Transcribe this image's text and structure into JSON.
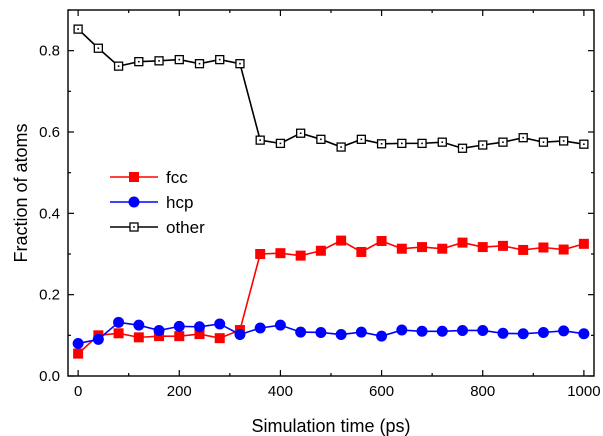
{
  "chart_data": {
    "type": "line",
    "xlabel": "Simulation time (ps)",
    "ylabel": "Fraction of atoms",
    "xlim": [
      -20,
      1020
    ],
    "ylim": [
      0.0,
      0.9
    ],
    "xticks": [
      0,
      200,
      400,
      600,
      800,
      1000
    ],
    "yticks": [
      0.0,
      0.2,
      0.4,
      0.6,
      0.8
    ],
    "xtick_labels": [
      "0",
      "200",
      "400",
      "600",
      "800",
      "1000"
    ],
    "ytick_labels": [
      "0.0",
      "0.2",
      "0.4",
      "0.6",
      "0.8"
    ],
    "grid": false,
    "legend_position": "center-left",
    "x": [
      0,
      40,
      80,
      120,
      160,
      200,
      240,
      280,
      320,
      360,
      400,
      440,
      480,
      520,
      560,
      600,
      640,
      680,
      720,
      760,
      800,
      840,
      880,
      920,
      960,
      1000
    ],
    "series": [
      {
        "name": "fcc",
        "color": "#ff0000",
        "marker": "filled-square",
        "values": [
          0.055,
          0.1,
          0.105,
          0.095,
          0.098,
          0.098,
          0.103,
          0.093,
          0.113,
          0.3,
          0.302,
          0.296,
          0.308,
          0.333,
          0.305,
          0.332,
          0.313,
          0.317,
          0.313,
          0.328,
          0.317,
          0.32,
          0.31,
          0.316,
          0.311,
          0.325
        ]
      },
      {
        "name": "hcp",
        "color": "#0000ff",
        "marker": "filled-circle",
        "values": [
          0.08,
          0.09,
          0.132,
          0.125,
          0.112,
          0.122,
          0.121,
          0.128,
          0.102,
          0.118,
          0.125,
          0.108,
          0.107,
          0.102,
          0.108,
          0.098,
          0.113,
          0.11,
          0.11,
          0.112,
          0.112,
          0.105,
          0.104,
          0.107,
          0.111,
          0.104
        ]
      },
      {
        "name": "other",
        "color": "#000000",
        "marker": "open-square",
        "values": [
          0.853,
          0.806,
          0.762,
          0.773,
          0.775,
          0.778,
          0.768,
          0.778,
          0.768,
          0.58,
          0.572,
          0.597,
          0.582,
          0.563,
          0.582,
          0.571,
          0.572,
          0.572,
          0.575,
          0.56,
          0.568,
          0.575,
          0.586,
          0.575,
          0.578,
          0.57
        ]
      }
    ]
  }
}
